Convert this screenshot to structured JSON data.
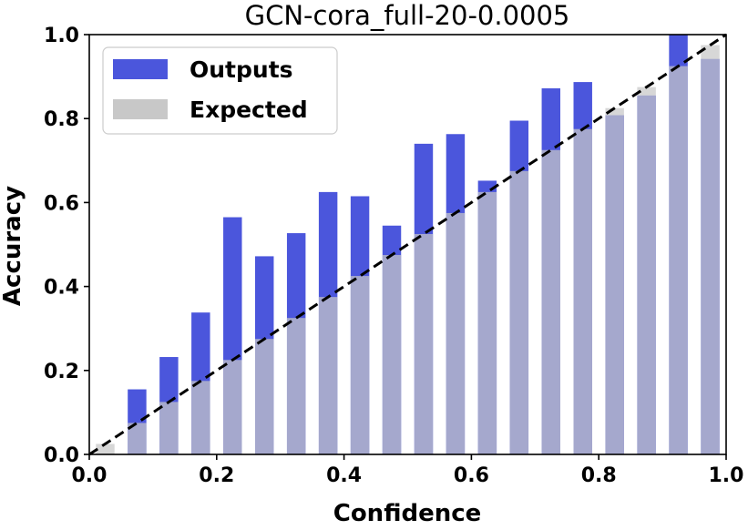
{
  "chart_data": {
    "type": "bar",
    "title": "GCN-cora_full-20-0.0005",
    "xlabel": "Confidence",
    "ylabel": "Accuracy",
    "xlim": [
      0.0,
      1.0
    ],
    "ylim": [
      0.0,
      1.0
    ],
    "xticks": [
      "0.0",
      "0.2",
      "0.4",
      "0.6",
      "0.8",
      "1.0"
    ],
    "yticks": [
      "0.0",
      "0.2",
      "0.4",
      "0.6",
      "0.8",
      "1.0"
    ],
    "bin_width": 0.05,
    "legend_position": "top-left",
    "grid": false,
    "series": [
      {
        "name": "Outputs",
        "color": "#4b56dc",
        "x": [
          0.025,
          0.075,
          0.125,
          0.175,
          0.225,
          0.275,
          0.325,
          0.375,
          0.425,
          0.475,
          0.525,
          0.575,
          0.625,
          0.675,
          0.725,
          0.775,
          0.825,
          0.875,
          0.925,
          0.975
        ],
        "values": [
          0.0,
          0.155,
          0.232,
          0.338,
          0.565,
          0.472,
          0.527,
          0.625,
          0.615,
          0.545,
          0.74,
          0.763,
          0.652,
          0.795,
          0.872,
          0.887,
          0.808,
          0.855,
          1.0,
          0.942
        ]
      },
      {
        "name": "Expected",
        "color": "#c8c8c8",
        "x": [
          0.025,
          0.075,
          0.125,
          0.175,
          0.225,
          0.275,
          0.325,
          0.375,
          0.425,
          0.475,
          0.525,
          0.575,
          0.625,
          0.675,
          0.725,
          0.775,
          0.825,
          0.875,
          0.925,
          0.975
        ],
        "values": [
          0.025,
          0.075,
          0.125,
          0.175,
          0.225,
          0.275,
          0.325,
          0.375,
          0.425,
          0.475,
          0.525,
          0.575,
          0.625,
          0.675,
          0.725,
          0.775,
          0.825,
          0.875,
          0.925,
          0.975
        ]
      }
    ],
    "reference_line": {
      "style": "dashed",
      "color": "#000000",
      "from": [
        0.0,
        0.0
      ],
      "to": [
        1.0,
        1.0
      ]
    }
  }
}
